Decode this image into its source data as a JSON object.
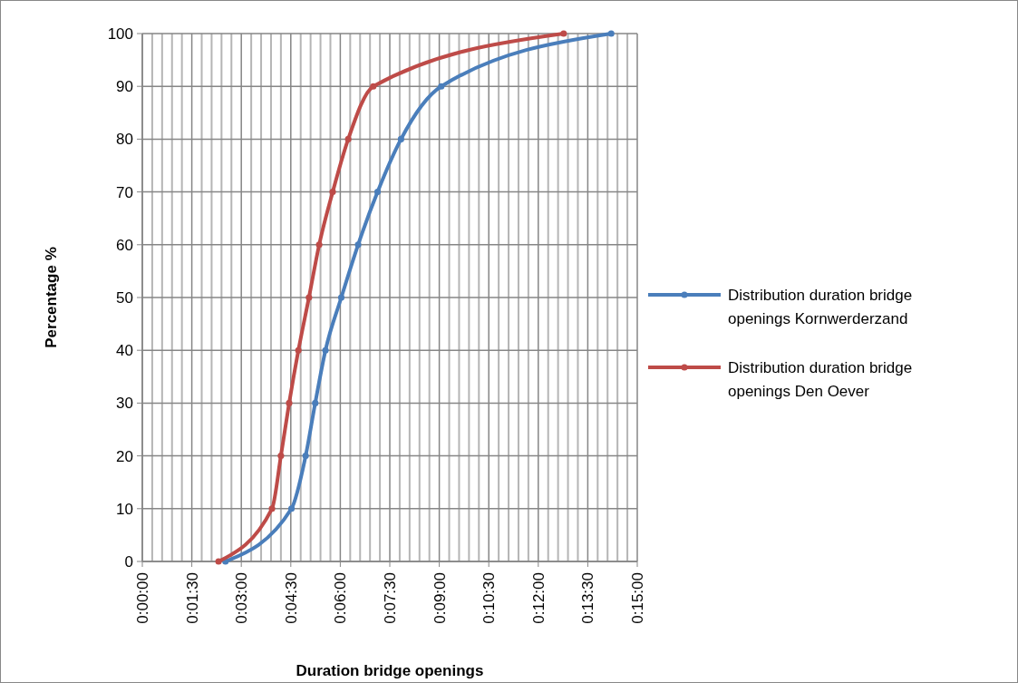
{
  "chart_data": {
    "type": "line",
    "xlabel": "Duration bridge openings",
    "ylabel": "Percentage %",
    "xlim": [
      0,
      15
    ],
    "ylim": [
      0,
      100
    ],
    "xticks": [
      {
        "value": 0,
        "label": "0:00:00"
      },
      {
        "value": 0.3,
        "label": null
      },
      {
        "value": 0.6,
        "label": null
      },
      {
        "value": 0.9,
        "label": null
      },
      {
        "value": 1.2,
        "label": null
      },
      {
        "value": 1.5,
        "label": "0:01:30"
      },
      {
        "value": 1.8,
        "label": null
      },
      {
        "value": 2.1,
        "label": null
      },
      {
        "value": 2.4,
        "label": null
      },
      {
        "value": 2.7,
        "label": null
      },
      {
        "value": 3,
        "label": "0:03:00"
      },
      {
        "value": 3.3,
        "label": null
      },
      {
        "value": 3.6,
        "label": null
      },
      {
        "value": 3.9,
        "label": null
      },
      {
        "value": 4.2,
        "label": null
      },
      {
        "value": 4.5,
        "label": "0:04:30"
      },
      {
        "value": 4.8,
        "label": null
      },
      {
        "value": 5.1,
        "label": null
      },
      {
        "value": 5.4,
        "label": null
      },
      {
        "value": 5.7,
        "label": null
      },
      {
        "value": 6,
        "label": "0:06:00"
      },
      {
        "value": 6.3,
        "label": null
      },
      {
        "value": 6.6,
        "label": null
      },
      {
        "value": 6.9,
        "label": null
      },
      {
        "value": 7.2,
        "label": null
      },
      {
        "value": 7.5,
        "label": "0:07:30"
      },
      {
        "value": 7.8,
        "label": null
      },
      {
        "value": 8.1,
        "label": null
      },
      {
        "value": 8.4,
        "label": null
      },
      {
        "value": 8.7,
        "label": null
      },
      {
        "value": 9,
        "label": "0:09:00"
      },
      {
        "value": 9.3,
        "label": null
      },
      {
        "value": 9.6,
        "label": null
      },
      {
        "value": 9.9,
        "label": null
      },
      {
        "value": 10.2,
        "label": null
      },
      {
        "value": 10.5,
        "label": "0:10:30"
      },
      {
        "value": 10.8,
        "label": null
      },
      {
        "value": 11.1,
        "label": null
      },
      {
        "value": 11.4,
        "label": null
      },
      {
        "value": 11.7,
        "label": null
      },
      {
        "value": 12,
        "label": "0:12:00"
      },
      {
        "value": 12.3,
        "label": null
      },
      {
        "value": 12.6,
        "label": null
      },
      {
        "value": 12.9,
        "label": null
      },
      {
        "value": 13.2,
        "label": null
      },
      {
        "value": 13.5,
        "label": "0:13:30"
      },
      {
        "value": 13.8,
        "label": null
      },
      {
        "value": 14.1,
        "label": null
      },
      {
        "value": 14.4,
        "label": null
      },
      {
        "value": 14.7,
        "label": null
      },
      {
        "value": 15,
        "label": "0:15:00"
      }
    ],
    "yticks": [
      0,
      10,
      20,
      30,
      40,
      50,
      60,
      70,
      80,
      90,
      100
    ],
    "grid": true,
    "legend": "right",
    "marker": "circle",
    "line_style": "solid",
    "series": [
      {
        "name": "Distribution duration bridge openings Kornwerderzand",
        "color": "#4a7ebb",
        "x": [
          2.52,
          4.52,
          4.95,
          5.24,
          5.55,
          6.03,
          6.54,
          7.13,
          7.84,
          9.06,
          14.21
        ],
        "values": [
          0,
          10,
          20,
          30,
          40,
          50,
          60,
          70,
          80,
          90,
          100
        ]
      },
      {
        "name": "Distribution duration bridge openings Den Oever",
        "color": "#be4b48",
        "x": [
          2.31,
          3.93,
          4.2,
          4.45,
          4.73,
          5.05,
          5.36,
          5.77,
          6.24,
          7.0,
          12.77
        ],
        "values": [
          0,
          10,
          20,
          30,
          40,
          50,
          60,
          70,
          80,
          90,
          100
        ]
      }
    ]
  }
}
